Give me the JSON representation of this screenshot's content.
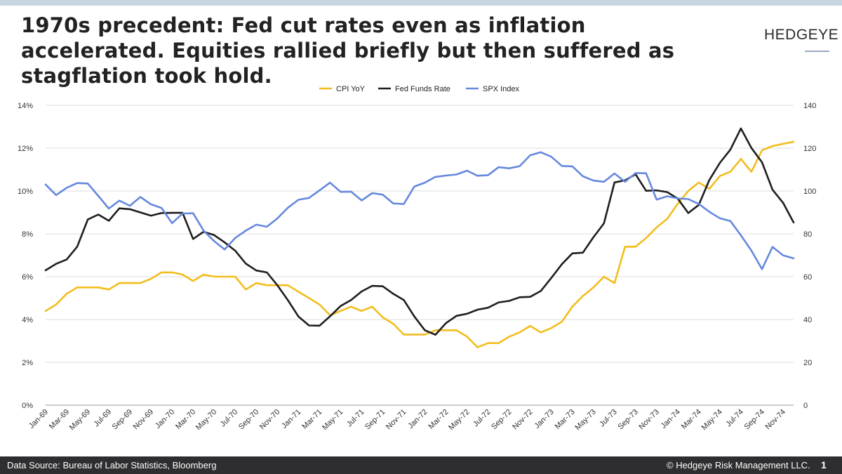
{
  "header": {
    "title": "1970s precedent: Fed cut rates even as inflation accelerated. Equities rallied briefly but then suffered as stagflation took hold.",
    "logo_text": "HEDGEYE"
  },
  "footer": {
    "source": "Data Source: Bureau of Labor Statistics, Bloomberg",
    "copyright": "© Hedgeye Risk Management LLC.",
    "page_number": "1"
  },
  "colors": {
    "cpi": "#f2bd1d",
    "fed": "#1e1e1e",
    "spx": "#6688dd",
    "grid": "#dddddd"
  },
  "chart_data": {
    "type": "line",
    "title": "",
    "x": [
      "Jan-69",
      "Feb-69",
      "Mar-69",
      "Apr-69",
      "May-69",
      "Jun-69",
      "Jul-69",
      "Aug-69",
      "Sep-69",
      "Oct-69",
      "Nov-69",
      "Dec-69",
      "Jan-70",
      "Feb-70",
      "Mar-70",
      "Apr-70",
      "May-70",
      "Jun-70",
      "Jul-70",
      "Aug-70",
      "Sep-70",
      "Oct-70",
      "Nov-70",
      "Dec-70",
      "Jan-71",
      "Feb-71",
      "Mar-71",
      "Apr-71",
      "May-71",
      "Jun-71",
      "Jul-71",
      "Aug-71",
      "Sep-71",
      "Oct-71",
      "Nov-71",
      "Dec-71",
      "Jan-72",
      "Feb-72",
      "Mar-72",
      "Apr-72",
      "May-72",
      "Jun-72",
      "Jul-72",
      "Aug-72",
      "Sep-72",
      "Oct-72",
      "Nov-72",
      "Dec-72",
      "Jan-73",
      "Feb-73",
      "Mar-73",
      "Apr-73",
      "May-73",
      "Jun-73",
      "Jul-73",
      "Aug-73",
      "Sep-73",
      "Oct-73",
      "Nov-73",
      "Dec-73",
      "Jan-74",
      "Feb-74",
      "Mar-74",
      "Apr-74",
      "May-74",
      "Jun-74",
      "Jul-74",
      "Aug-74",
      "Sep-74",
      "Oct-74",
      "Nov-74",
      "Dec-74"
    ],
    "x_tick_labels": [
      "Jan-69",
      "Mar-69",
      "May-69",
      "Jul-69",
      "Sep-69",
      "Nov-69",
      "Jan-70",
      "Mar-70",
      "May-70",
      "Jul-70",
      "Sep-70",
      "Nov-70",
      "Jan-71",
      "Mar-71",
      "May-71",
      "Jul-71",
      "Sep-71",
      "Nov-71",
      "Jan-72",
      "Mar-72",
      "May-72",
      "Jul-72",
      "Sep-72",
      "Nov-72",
      "Jan-73",
      "Mar-73",
      "May-73",
      "Jul-73",
      "Sep-73",
      "Nov-73",
      "Jan-74",
      "Mar-74",
      "May-74",
      "Jul-74",
      "Sep-74",
      "Nov-74"
    ],
    "left_axis": {
      "ylim": [
        0,
        14
      ],
      "tick_labels": [
        "0%",
        "2%",
        "4%",
        "6%",
        "8%",
        "10%",
        "12%",
        "14%"
      ]
    },
    "right_axis": {
      "ylim": [
        0,
        140
      ],
      "tick_labels": [
        "0",
        "20",
        "40",
        "60",
        "80",
        "100",
        "120",
        "140"
      ]
    },
    "legend_position": "top-center",
    "grid": true,
    "series": [
      {
        "name": "CPI YoY",
        "axis": "left",
        "values": [
          4.4,
          4.7,
          5.2,
          5.5,
          5.5,
          5.5,
          5.4,
          5.7,
          5.7,
          5.7,
          5.9,
          6.2,
          6.2,
          6.1,
          5.8,
          6.1,
          6.0,
          6.0,
          6.0,
          5.4,
          5.7,
          5.6,
          5.6,
          5.6,
          5.3,
          5.0,
          4.7,
          4.2,
          4.4,
          4.6,
          4.4,
          4.6,
          4.1,
          3.8,
          3.3,
          3.3,
          3.3,
          3.5,
          3.5,
          3.5,
          3.2,
          2.7,
          2.9,
          2.9,
          3.2,
          3.4,
          3.7,
          3.4,
          3.6,
          3.9,
          4.6,
          5.1,
          5.5,
          6.0,
          5.7,
          7.4,
          7.4,
          7.8,
          8.3,
          8.7,
          9.4,
          10.0,
          10.4,
          10.1,
          10.7,
          10.9,
          11.5,
          10.9,
          11.9,
          12.1,
          12.2,
          12.3
        ]
      },
      {
        "name": "Fed Funds Rate",
        "axis": "left",
        "values": [
          6.3,
          6.6,
          6.8,
          7.4,
          8.67,
          8.9,
          8.61,
          9.19,
          9.15,
          9.0,
          8.85,
          8.97,
          8.98,
          8.98,
          7.76,
          8.1,
          7.94,
          7.6,
          7.21,
          6.61,
          6.29,
          6.2,
          5.6,
          4.9,
          4.14,
          3.72,
          3.71,
          4.15,
          4.63,
          4.91,
          5.31,
          5.57,
          5.55,
          5.2,
          4.91,
          4.14,
          3.5,
          3.29,
          3.83,
          4.17,
          4.27,
          4.46,
          4.55,
          4.8,
          4.87,
          5.04,
          5.06,
          5.33,
          5.94,
          6.58,
          7.09,
          7.12,
          7.84,
          8.49,
          10.4,
          10.5,
          10.78,
          10.01,
          10.03,
          9.95,
          9.65,
          8.97,
          9.35,
          10.51,
          11.31,
          11.93,
          12.92,
          12.01,
          11.34,
          10.06,
          9.45,
          8.53
        ]
      },
      {
        "name": "SPX Index",
        "axis": "right",
        "values": [
          103.0,
          98.1,
          101.5,
          103.7,
          103.5,
          97.7,
          91.8,
          95.5,
          93.1,
          97.2,
          93.8,
          92.1,
          85.0,
          89.5,
          89.6,
          81.5,
          76.6,
          72.7,
          78.1,
          81.5,
          84.3,
          83.3,
          87.2,
          92.2,
          95.9,
          96.8,
          100.3,
          103.9,
          99.6,
          99.7,
          95.6,
          99.0,
          98.3,
          94.2,
          93.9,
          102.1,
          103.9,
          106.6,
          107.2,
          107.7,
          109.5,
          107.1,
          107.4,
          111.1,
          110.6,
          111.6,
          116.7,
          118.1,
          116.0,
          111.7,
          111.5,
          106.9,
          104.9,
          104.3,
          108.2,
          104.3,
          108.4,
          108.3,
          95.96,
          97.55,
          96.57,
          96.22,
          93.98,
          90.31,
          87.28,
          86.0,
          79.31,
          72.15,
          63.54,
          73.9,
          69.97,
          68.56
        ]
      }
    ]
  }
}
